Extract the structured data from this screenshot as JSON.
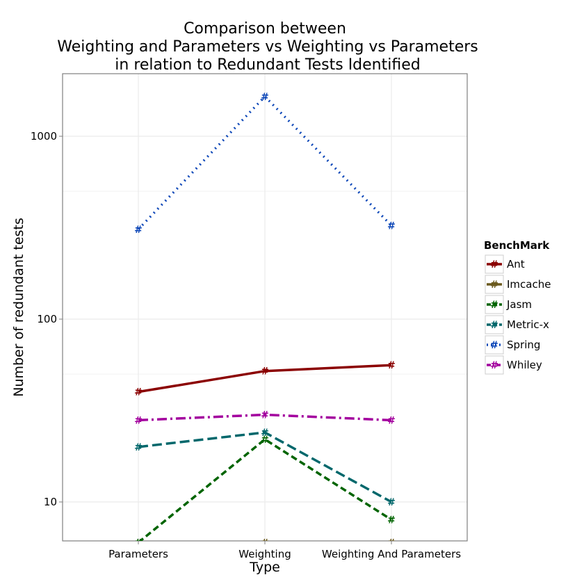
{
  "chart_data": {
    "type": "line",
    "title": [
      "Comparison between",
      "Weighting and Parameters vs Weighting vs Parameters",
      "in relation to Redundant Tests Identified"
    ],
    "xlabel": "Type",
    "ylabel": "Number of redundant tests",
    "y_scale": "log10",
    "y_ticks": [
      "10",
      "100",
      "1000"
    ],
    "categories": [
      "Parameters",
      "Weighting",
      "Weighting And Parameters"
    ],
    "legend": {
      "title": "BenchMark",
      "position": "right"
    },
    "marker_glyph": "#",
    "grid": true,
    "series": [
      {
        "name": "Ant",
        "values": [
          40,
          52,
          56
        ],
        "color": "#8b0000",
        "dash": "solid"
      },
      {
        "name": "Imcache",
        "values": [
          6,
          6,
          6
        ],
        "color": "#6b5a1e",
        "dash": "solid"
      },
      {
        "name": "Jasm",
        "values": [
          6,
          22,
          8
        ],
        "color": "#006400",
        "dash": "dashed"
      },
      {
        "name": "Metric-x",
        "values": [
          20,
          24,
          10
        ],
        "color": "#00676b",
        "dash": "longdash"
      },
      {
        "name": "Spring",
        "values": [
          310,
          1650,
          325
        ],
        "color": "#0d47b8",
        "dash": "dotted"
      },
      {
        "name": "Whiley",
        "values": [
          28,
          30,
          28
        ],
        "color": "#a3009e",
        "dash": "dotdash"
      }
    ]
  }
}
